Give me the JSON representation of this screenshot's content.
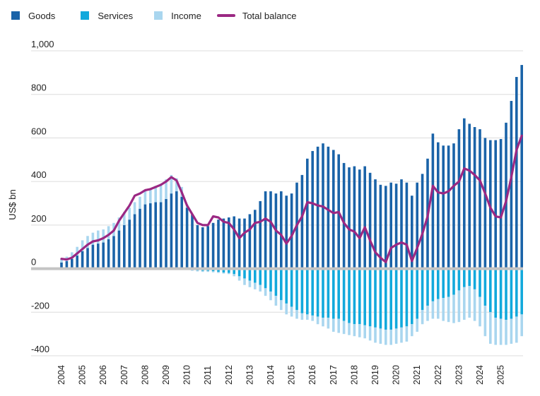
{
  "chart_data": {
    "type": "bar",
    "title": "",
    "xlabel": "",
    "ylabel": "US$ bn",
    "ylim": [
      -400,
      1000
    ],
    "yticks": [
      1000,
      800,
      600,
      400,
      200,
      0,
      -200,
      -400
    ],
    "ytick_labels": [
      "1,000",
      "800",
      "600",
      "400",
      "200",
      "0",
      "-200",
      "-400"
    ],
    "xticks": [
      "2004",
      "2005",
      "2006",
      "2007",
      "2008",
      "2009",
      "2010",
      "2011",
      "2012",
      "2013",
      "2014",
      "2015",
      "2016",
      "2017",
      "2018",
      "2019",
      "2020",
      "2021",
      "2022",
      "2023",
      "2024",
      "2025"
    ],
    "stacked": true,
    "grid": true,
    "legend_position": "top-left",
    "colors": {
      "goods": "#1a63a8",
      "services": "#12a9dc",
      "income": "#a9d6ef",
      "total": "#9b2883",
      "zero_line": "#c4c4c4",
      "grid": "#dcdcdc"
    },
    "x_start": "2004Q1",
    "frequency": "quarterly",
    "series": [
      {
        "name": "Goods",
        "type": "bar",
        "values": [
          28,
          35,
          45,
          60,
          80,
          95,
          110,
          115,
          120,
          135,
          150,
          175,
          200,
          225,
          250,
          275,
          295,
          300,
          305,
          305,
          320,
          345,
          355,
          330,
          280,
          250,
          200,
          190,
          195,
          210,
          225,
          230,
          235,
          240,
          230,
          230,
          250,
          270,
          310,
          355,
          355,
          345,
          355,
          335,
          345,
          395,
          430,
          505,
          540,
          560,
          575,
          560,
          545,
          525,
          485,
          465,
          470,
          455,
          470,
          440,
          410,
          385,
          380,
          395,
          390,
          410,
          395,
          335,
          395,
          435,
          505,
          620,
          580,
          565,
          565,
          575,
          640,
          690,
          665,
          650,
          640,
          600,
          590,
          590,
          595,
          670,
          770,
          880,
          935
        ],
        "stack_values": [
          28,
          35,
          45,
          60,
          80,
          95,
          110,
          115,
          120,
          135,
          150,
          175,
          200,
          225,
          250,
          275,
          295,
          300,
          305,
          305,
          320,
          345,
          355,
          330,
          280,
          250,
          200,
          190,
          195,
          210,
          225,
          230,
          235,
          240,
          230,
          230,
          250,
          270,
          310,
          355,
          355,
          345,
          355,
          335,
          345,
          395,
          430,
          505,
          540,
          560,
          575,
          560,
          545,
          525,
          485,
          465,
          470,
          455,
          470,
          440,
          410,
          385,
          380,
          395,
          390,
          410,
          395,
          335,
          395,
          435,
          505,
          620,
          580,
          565,
          565,
          575,
          640,
          690,
          665,
          650,
          640,
          600,
          590,
          590,
          595,
          670,
          770,
          880,
          935
        ],
        "neg_values": []
      },
      {
        "name": "Services",
        "type": "bar",
        "values": [
          0,
          0,
          0,
          0,
          0,
          0,
          0,
          0,
          0,
          0,
          0,
          0,
          0,
          0,
          0,
          0,
          0,
          0,
          0,
          0,
          0,
          0,
          0,
          0,
          0,
          -5,
          -8,
          -10,
          -10,
          -12,
          -15,
          -18,
          -20,
          -25,
          -35,
          -45,
          -55,
          -65,
          -75,
          -90,
          -105,
          -125,
          -145,
          -160,
          -175,
          -190,
          -205,
          -210,
          -215,
          -220,
          -225,
          -225,
          -230,
          -230,
          -240,
          -250,
          -255,
          -255,
          -260,
          -265,
          -270,
          -275,
          -280,
          -280,
          -275,
          -270,
          -265,
          -255,
          -230,
          -190,
          -170,
          -150,
          -140,
          -135,
          -130,
          -120,
          -100,
          -85,
          -80,
          -95,
          -130,
          -170,
          -200,
          -225,
          -230,
          -235,
          -230,
          -220,
          -210
        ]
      },
      {
        "name": "Income",
        "type": "bar",
        "values": [
          15,
          20,
          30,
          40,
          50,
          55,
          55,
          60,
          60,
          60,
          60,
          60,
          60,
          55,
          55,
          55,
          60,
          65,
          75,
          85,
          90,
          85,
          60,
          45,
          15,
          -5,
          -5,
          -5,
          -5,
          -5,
          -5,
          -5,
          -5,
          -10,
          -20,
          -30,
          -30,
          -30,
          -30,
          -35,
          -40,
          -45,
          -45,
          -50,
          -45,
          -40,
          -30,
          -25,
          -25,
          -35,
          -40,
          -50,
          -60,
          -65,
          -60,
          -55,
          -55,
          -60,
          -60,
          -65,
          -70,
          -70,
          -70,
          -70,
          -70,
          -70,
          -70,
          -55,
          -60,
          -65,
          -70,
          -80,
          -90,
          -105,
          -115,
          -130,
          -145,
          -150,
          -145,
          -145,
          -135,
          -140,
          -145,
          -125,
          -120,
          -115,
          -115,
          -120,
          -100
        ]
      },
      {
        "name": "Total balance",
        "type": "line",
        "values": [
          45,
          42,
          50,
          70,
          90,
          110,
          125,
          130,
          140,
          155,
          175,
          220,
          255,
          290,
          335,
          345,
          360,
          365,
          375,
          385,
          400,
          420,
          405,
          350,
          290,
          250,
          210,
          200,
          200,
          240,
          235,
          215,
          210,
          180,
          140,
          165,
          180,
          210,
          215,
          230,
          215,
          175,
          155,
          115,
          150,
          200,
          240,
          305,
          300,
          290,
          285,
          270,
          255,
          260,
          210,
          180,
          170,
          140,
          190,
          130,
          75,
          50,
          30,
          95,
          110,
          120,
          110,
          35,
          95,
          160,
          240,
          380,
          350,
          345,
          355,
          380,
          400,
          460,
          450,
          430,
          405,
          345,
          280,
          240,
          235,
          310,
          420,
          545,
          610
        ]
      }
    ]
  }
}
